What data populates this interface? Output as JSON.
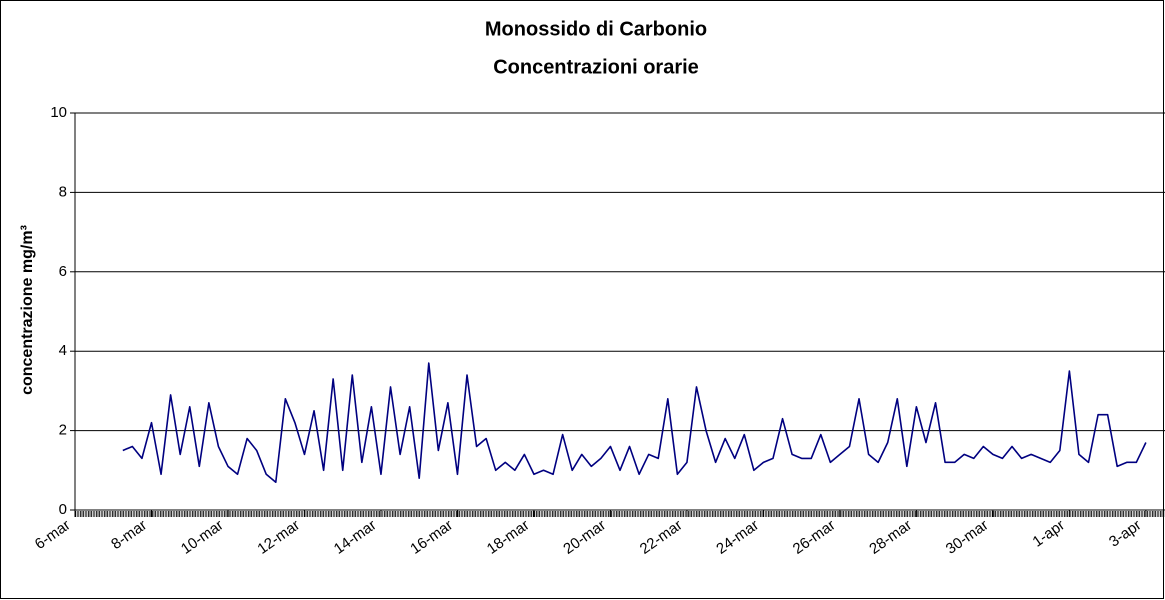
{
  "chart_data": {
    "type": "line",
    "title": [
      "Monossido di Carbonio",
      "Concentrazioni orarie"
    ],
    "y_label": "concentrazione mg/m³",
    "xlim": [
      0,
      28.5
    ],
    "xticks": [
      {
        "value": 0,
        "label": "6-mar"
      },
      {
        "value": 2,
        "label": "8-mar"
      },
      {
        "value": 4,
        "label": "10-mar"
      },
      {
        "value": 6,
        "label": "12-mar"
      },
      {
        "value": 8,
        "label": "14-mar"
      },
      {
        "value": 10,
        "label": "16-mar"
      },
      {
        "value": 12,
        "label": "18-mar"
      },
      {
        "value": 14,
        "label": "20-mar"
      },
      {
        "value": 16,
        "label": "22-mar"
      },
      {
        "value": 18,
        "label": "24-mar"
      },
      {
        "value": 20,
        "label": "26-mar"
      },
      {
        "value": 22,
        "label": "28-mar"
      },
      {
        "value": 24,
        "label": "30-mar"
      },
      {
        "value": 26,
        "label": "1-apr"
      },
      {
        "value": 28,
        "label": "3-apr"
      }
    ],
    "ylim": [
      0,
      10
    ],
    "yticks": [
      0,
      2,
      4,
      6,
      8,
      10
    ],
    "grid": true,
    "series": [
      {
        "color": "#000080",
        "x": [
          1.25,
          1.5,
          1.75,
          2,
          2.25,
          2.5,
          2.75,
          3,
          3.25,
          3.5,
          3.75,
          4,
          4.25,
          4.5,
          4.75,
          5,
          5.25,
          5.5,
          5.75,
          6,
          6.25,
          6.5,
          6.75,
          7,
          7.25,
          7.5,
          7.75,
          8,
          8.25,
          8.5,
          8.75,
          9,
          9.25,
          9.5,
          9.75,
          10,
          10.25,
          10.5,
          10.75,
          11,
          11.25,
          11.5,
          11.75,
          12,
          12.25,
          12.5,
          12.75,
          13,
          13.25,
          13.5,
          13.75,
          14,
          14.25,
          14.5,
          14.75,
          15,
          15.25,
          15.5,
          15.75,
          16,
          16.25,
          16.5,
          16.75,
          17,
          17.25,
          17.5,
          17.75,
          18,
          18.25,
          18.5,
          18.75,
          19,
          19.25,
          19.5,
          19.75,
          20,
          20.25,
          20.5,
          20.75,
          21,
          21.25,
          21.5,
          21.75,
          22,
          22.25,
          22.5,
          22.75,
          23,
          23.25,
          23.5,
          23.75,
          24,
          24.25,
          24.5,
          24.75,
          25,
          25.25,
          25.5,
          25.75,
          26,
          26.25,
          26.5,
          26.75,
          27,
          27.25,
          27.5,
          27.75,
          28
        ],
        "values": [
          1.5,
          1.6,
          1.3,
          2.2,
          0.9,
          2.9,
          1.4,
          2.6,
          1.1,
          2.7,
          1.6,
          1.1,
          0.9,
          1.8,
          1.5,
          0.9,
          0.7,
          2.8,
          2.2,
          1.4,
          2.5,
          1.0,
          3.3,
          1.0,
          3.4,
          1.2,
          2.6,
          0.9,
          3.1,
          1.4,
          2.6,
          0.8,
          3.7,
          1.5,
          2.7,
          0.9,
          3.4,
          1.6,
          1.8,
          1.0,
          1.2,
          1.0,
          1.4,
          0.9,
          1.0,
          0.9,
          1.9,
          1.0,
          1.4,
          1.1,
          1.3,
          1.6,
          1.0,
          1.6,
          0.9,
          1.4,
          1.3,
          2.8,
          0.9,
          1.2,
          3.1,
          2.0,
          1.2,
          1.8,
          1.3,
          1.9,
          1.0,
          1.2,
          1.3,
          2.3,
          1.4,
          1.3,
          1.3,
          1.9,
          1.2,
          1.4,
          1.6,
          2.8,
          1.4,
          1.2,
          1.7,
          2.8,
          1.1,
          2.6,
          1.7,
          2.7,
          1.2,
          1.2,
          1.4,
          1.3,
          1.6,
          1.4,
          1.3,
          1.6,
          1.3,
          1.4,
          1.3,
          1.2,
          1.5,
          3.5,
          1.4,
          1.2,
          2.4,
          2.4,
          1.1,
          1.2,
          1.2,
          1.7
        ]
      }
    ]
  }
}
